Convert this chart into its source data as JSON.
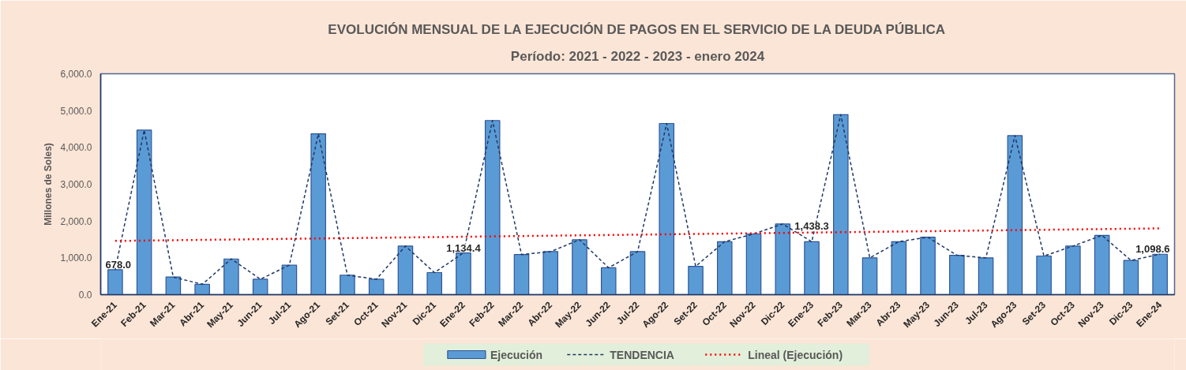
{
  "chart_data": {
    "type": "bar",
    "title": "EVOLUCIÓN MENSUAL DE LA EJECUCIÓN DE PAGOS EN EL SERVICIO DE LA DEUDA PÚBLICA",
    "subtitle": "Período: 2021 - 2022 - 2023 - enero 2024",
    "ylabel": "Millones de Soles)",
    "categories": [
      "Ene-21",
      "Feb-21",
      "Mar-21",
      "Abr-21",
      "May-21",
      "Jun-21",
      "Jul-21",
      "Ago-21",
      "Set-21",
      "Oct-21",
      "Nov-21",
      "Dic-21",
      "Ene-22",
      "Feb-22",
      "Mar-22",
      "Abr-22",
      "May-22",
      "Jun-22",
      "Jul-22",
      "Ago-22",
      "Set-22",
      "Oct-22",
      "Nov-22",
      "Dic-22",
      "Ene-23",
      "Feb-23",
      "Mar-23",
      "Abr-23",
      "May-23",
      "Jun-23",
      "Jul-23",
      "Ago-23",
      "Set-23",
      "Oct-23",
      "Nov-23",
      "Dic-23",
      "Ene-24"
    ],
    "series": [
      {
        "name": "Ejecución",
        "color": "#5b9bd5",
        "values": [
          678.0,
          4470,
          480,
          280,
          970,
          420,
          800,
          4370,
          530,
          420,
          1320,
          600,
          1134.4,
          4730,
          1090,
          1170,
          1490,
          730,
          1170,
          4650,
          770,
          1440,
          1650,
          1920,
          1438.3,
          4890,
          1000,
          1440,
          1560,
          1070,
          1000,
          4320,
          1050,
          1320,
          1610,
          930,
          1098.6
        ],
        "value_labels": [
          "678.0",
          null,
          null,
          null,
          null,
          null,
          null,
          null,
          null,
          null,
          null,
          null,
          "1,134.4",
          null,
          null,
          null,
          null,
          null,
          null,
          null,
          null,
          null,
          null,
          null,
          "1,438.3",
          null,
          null,
          null,
          null,
          null,
          null,
          null,
          null,
          null,
          null,
          null,
          "1,098.6"
        ]
      },
      {
        "name": "TENDENCIA",
        "type": "line",
        "color": "#203864",
        "line_style": "dashed",
        "values": [
          678.0,
          4470,
          480,
          280,
          970,
          420,
          800,
          4370,
          530,
          420,
          1320,
          600,
          1134.4,
          4730,
          1090,
          1170,
          1490,
          730,
          1170,
          4650,
          770,
          1440,
          1650,
          1920,
          1438.3,
          4890,
          1000,
          1440,
          1560,
          1070,
          1000,
          4320,
          1050,
          1320,
          1610,
          930,
          1098.6
        ]
      },
      {
        "name": "Lineal (Ejecución)",
        "type": "line",
        "color": "#ff0000",
        "line_style": "dotted",
        "x": [
          "Ene-21",
          "Ene-24"
        ],
        "values": [
          1460,
          1800
        ]
      }
    ],
    "ylim": [
      0,
      6000
    ],
    "yticks": [
      {
        "value": 0,
        "label": "0.0"
      },
      {
        "value": 1000,
        "label": "1,000.0"
      },
      {
        "value": 2000,
        "label": "2,000.0"
      },
      {
        "value": 3000,
        "label": "3,000.0"
      },
      {
        "value": 4000,
        "label": "4,000.0"
      },
      {
        "value": 5000,
        "label": "5,000.0"
      },
      {
        "value": 6000,
        "label": "6,000.0"
      }
    ],
    "legend": "bottom"
  }
}
